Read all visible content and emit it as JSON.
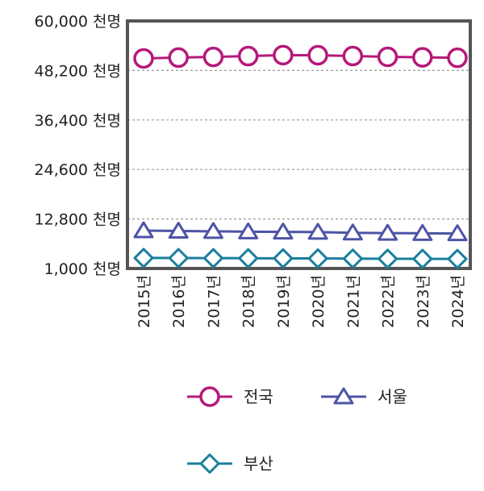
{
  "chart_data": {
    "type": "line",
    "categories": [
      "2015년",
      "2016년",
      "2017년",
      "2018년",
      "2019년",
      "2020년",
      "2021년",
      "2022년",
      "2023년",
      "2024년"
    ],
    "y_ticks": [
      "60,000 천명",
      "48,200 천명",
      "36,400 천명",
      "24,600 천명",
      "12,800 천명",
      "1,000 천명"
    ],
    "ylim": [
      1000,
      60000
    ],
    "grid": true,
    "legend_position": "bottom",
    "series": [
      {
        "name": "전국",
        "marker": "circle",
        "color": "#b5197a",
        "values": [
          51069,
          51270,
          51423,
          51630,
          51850,
          51830,
          51640,
          51440,
          51330,
          51220
        ]
      },
      {
        "name": "서울",
        "marker": "triangle",
        "color": "#4d54a5",
        "values": [
          10022,
          9930,
          9857,
          9765,
          9730,
          9669,
          9509,
          9428,
          9386,
          9331
        ]
      },
      {
        "name": "부산",
        "marker": "diamond",
        "color": "#1a7f9c",
        "values": [
          3513,
          3498,
          3470,
          3441,
          3414,
          3392,
          3350,
          3317,
          3293,
          3275
        ]
      }
    ]
  }
}
